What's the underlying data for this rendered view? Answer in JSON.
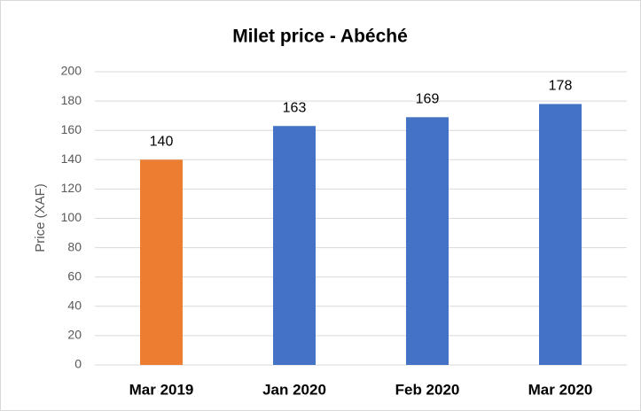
{
  "chart_data": {
    "type": "bar",
    "title": "Milet price - Abéché",
    "y_label": "Price (XAF)",
    "categories": [
      "Mar 2019",
      "Jan 2020",
      "Feb 2020",
      "Mar 2020"
    ],
    "values": [
      140,
      163,
      169,
      178
    ],
    "colors": [
      "#ed7d31",
      "#4472c4",
      "#4472c4",
      "#4472c4"
    ],
    "ylim": [
      0,
      200
    ],
    "yticks": [
      0,
      20,
      40,
      60,
      80,
      100,
      120,
      140,
      160,
      180,
      200
    ],
    "grid": true
  }
}
